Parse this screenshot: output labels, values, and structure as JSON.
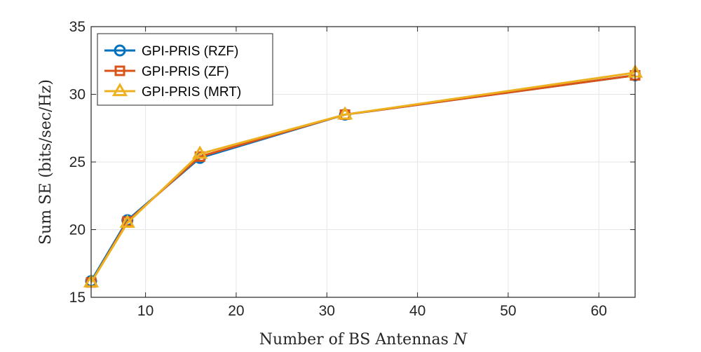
{
  "chart_data": {
    "type": "line",
    "x": [
      4,
      8,
      16,
      32,
      64
    ],
    "series": [
      {
        "name": "GPI-PRIS (RZF)",
        "marker": "circle",
        "color": "#0072BD",
        "values": [
          16.2,
          20.7,
          25.3,
          28.5,
          31.4
        ]
      },
      {
        "name": "GPI-PRIS (ZF)",
        "marker": "square",
        "color": "#D95319",
        "values": [
          16.1,
          20.6,
          25.4,
          28.5,
          31.4
        ]
      },
      {
        "name": "GPI-PRIS (MRT)",
        "marker": "triangle",
        "color": "#EDB120",
        "values": [
          16.1,
          20.5,
          25.6,
          28.5,
          31.6
        ]
      }
    ],
    "xlabel": "Number of BS Antennas",
    "xlabel_var": "N",
    "ylabel": "Sum SE (bits/sec/Hz)",
    "xlim": [
      4,
      64
    ],
    "ylim": [
      15,
      35
    ],
    "xticks": [
      10,
      20,
      30,
      40,
      50,
      60
    ],
    "yticks": [
      15,
      20,
      25,
      30,
      35
    ],
    "grid": true,
    "legend_position": "top-left"
  }
}
